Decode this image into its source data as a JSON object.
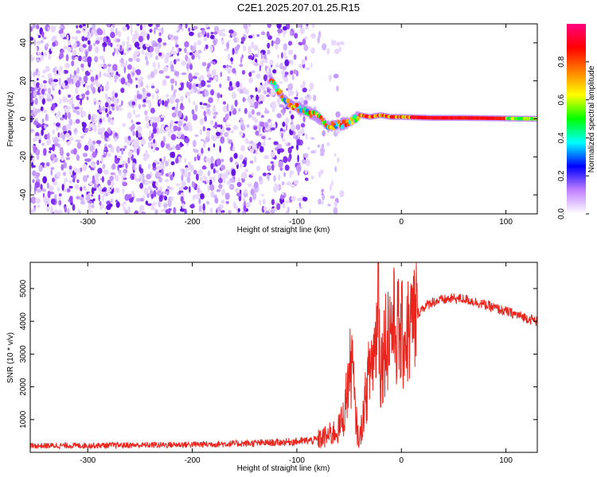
{
  "title": "C2E1.2025.207.01.25.R15",
  "chart_data": [
    {
      "type": "heatmap",
      "xlabel": "Height of straight line (km)",
      "ylabel": "Frequency (Hz)",
      "xlim": [
        -355,
        130
      ],
      "ylim": [
        -50,
        50
      ],
      "xticks": [
        -300,
        -200,
        -100,
        0,
        100
      ],
      "yticks": [
        -40,
        -20,
        0,
        20,
        40
      ],
      "colorbar": {
        "label": "Normalized spectral amplitude",
        "range": [
          0,
          1
        ],
        "ticks": [
          0.0,
          0.2,
          0.4,
          0.6,
          0.8
        ],
        "colors": [
          "#ffffff",
          "#c080ff",
          "#0000ff",
          "#00ffff",
          "#00ff00",
          "#ffff00",
          "#ff8000",
          "#ff0000",
          "#ff0080"
        ]
      },
      "signal_track": [
        {
          "x": -125,
          "y": 21
        },
        {
          "x": -118,
          "y": 15
        },
        {
          "x": -110,
          "y": 9
        },
        {
          "x": -100,
          "y": 6
        },
        {
          "x": -90,
          "y": 4
        },
        {
          "x": -80,
          "y": 1
        },
        {
          "x": -70,
          "y": -4
        },
        {
          "x": -60,
          "y": -3
        },
        {
          "x": -50,
          "y": -2
        },
        {
          "x": -40,
          "y": 2
        },
        {
          "x": -30,
          "y": 1
        },
        {
          "x": -20,
          "y": 2
        },
        {
          "x": -10,
          "y": 1
        },
        {
          "x": 0,
          "y": 1
        },
        {
          "x": 30,
          "y": 0.5
        },
        {
          "x": 60,
          "y": 0.5
        },
        {
          "x": 90,
          "y": 0.3
        },
        {
          "x": 130,
          "y": 0
        }
      ],
      "noise_region_xmax": -55,
      "grid": false
    },
    {
      "type": "line",
      "xlabel": "Height of straight line (km)",
      "ylabel": "SNR (10 * v/v)",
      "xlim": [
        -355,
        130
      ],
      "ylim": [
        0,
        5800
      ],
      "xticks": [
        -300,
        -200,
        -100,
        0,
        100
      ],
      "yticks": [
        1000,
        2000,
        3000,
        4000,
        5000
      ],
      "color": "#e8241c",
      "series": [
        {
          "x": [
            -355,
            -300,
            -250,
            -200,
            -150,
            -120,
            -100,
            -80,
            -70,
            -60,
            -55,
            -50,
            -47,
            -45,
            -42,
            -40,
            -35,
            -30,
            -25,
            -22,
            -20,
            -15,
            -10,
            -5,
            0,
            5,
            10,
            15,
            20,
            30,
            40,
            50,
            60,
            70,
            80,
            90,
            100,
            110,
            120,
            130
          ],
          "values": [
            200,
            210,
            220,
            240,
            270,
            300,
            330,
            380,
            500,
            700,
            1100,
            2400,
            2800,
            1500,
            600,
            350,
            1500,
            2600,
            3200,
            4800,
            2500,
            3500,
            3900,
            3800,
            3500,
            3600,
            3900,
            4200,
            4400,
            4600,
            4650,
            4700,
            4680,
            4600,
            4500,
            4400,
            4300,
            4200,
            4100,
            4000
          ]
        }
      ],
      "grid": false
    }
  ]
}
